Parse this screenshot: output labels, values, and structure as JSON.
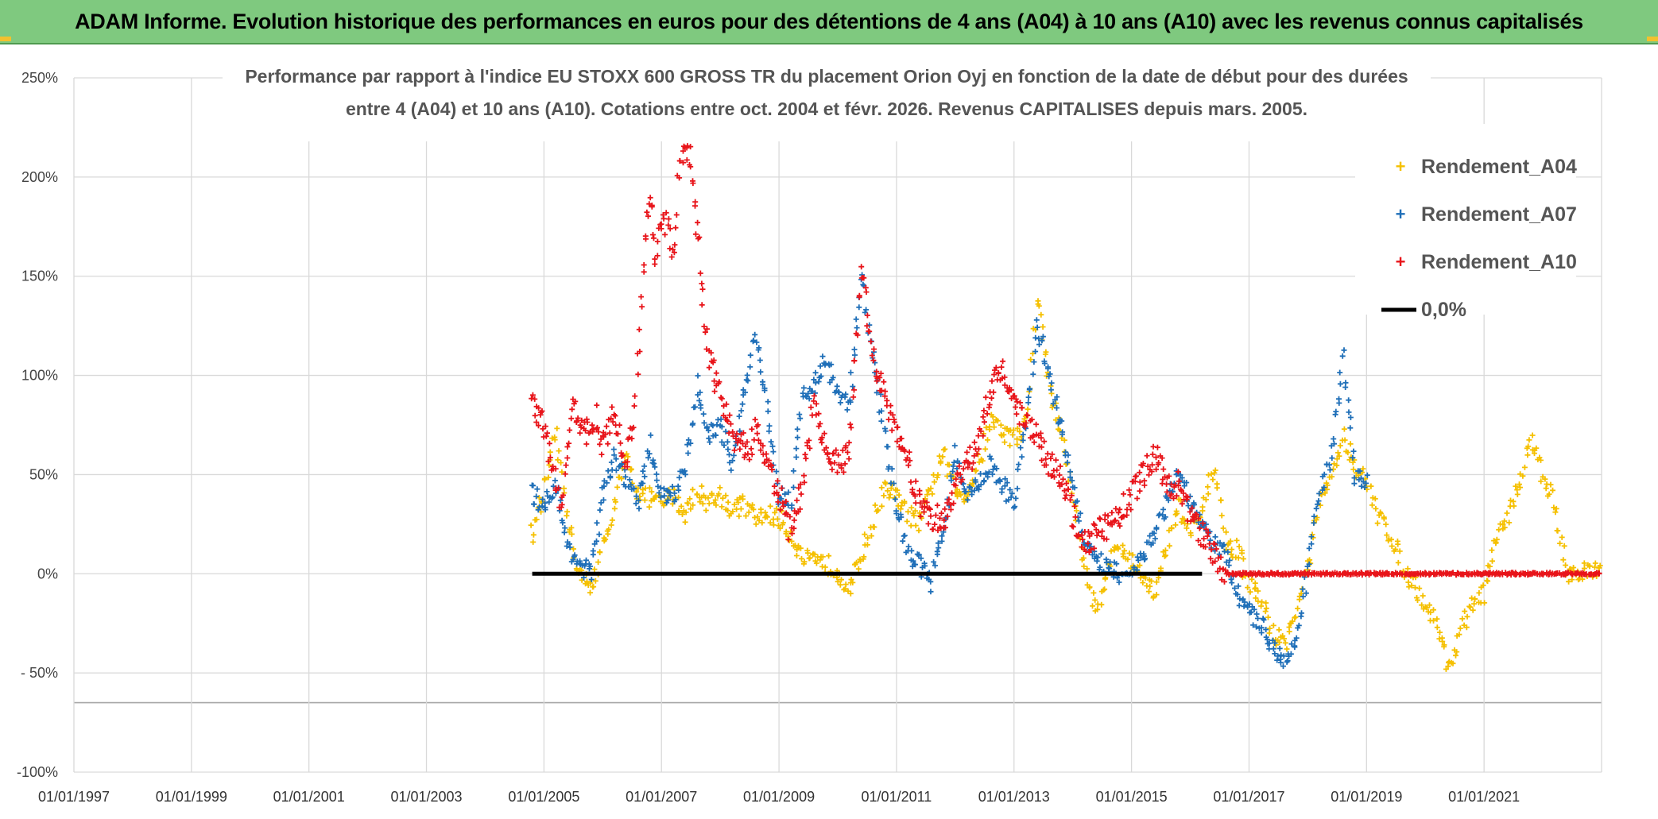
{
  "banner": {
    "title": "ADAM Informe. Evolution historique des performances en euros pour des détentions de 4 ans (A04) à 10 ans (A10) avec les revenus connus capitalisés"
  },
  "colors": {
    "banner_bg": "#7fc97f",
    "A04": "#f5c000",
    "A07": "#1f6fb8",
    "A10": "#e8141a",
    "zero": "#000000",
    "grid": "#d9d9d9"
  },
  "chart_data": {
    "type": "scatter",
    "title_lines": [
      "Performance par rapport à l'indice EU STOXX 600 GROSS TR  du placement Orion Oyj en fonction de la date de début pour des durées",
      "entre 4 (A04) et 10 ans (A10). Cotations entre oct. 2004 et févr. 2026. Revenus CAPITALISES depuis mars. 2005."
    ],
    "xlabel": "",
    "ylabel": "",
    "x_range": [
      1997.0,
      2023.0
    ],
    "ylim": [
      -100,
      250
    ],
    "x_ticks": [
      {
        "label": "01/01/1997",
        "value": 1997
      },
      {
        "label": "01/01/1999",
        "value": 1999
      },
      {
        "label": "01/01/2001",
        "value": 2001
      },
      {
        "label": "01/01/2003",
        "value": 2003
      },
      {
        "label": "01/01/2005",
        "value": 2005
      },
      {
        "label": "01/01/2007",
        "value": 2007
      },
      {
        "label": "01/01/2009",
        "value": 2009
      },
      {
        "label": "01/01/2011",
        "value": 2011
      },
      {
        "label": "01/01/2013",
        "value": 2013
      },
      {
        "label": "01/01/2015",
        "value": 2015
      },
      {
        "label": "01/01/2017",
        "value": 2017
      },
      {
        "label": "01/01/2019",
        "value": 2019
      },
      {
        "label": "01/01/2021",
        "value": 2021
      }
    ],
    "y_ticks": [
      {
        "label": "250%",
        "value": 250
      },
      {
        "label": "200%",
        "value": 200
      },
      {
        "label": "150%",
        "value": 150
      },
      {
        "label": "100%",
        "value": 100
      },
      {
        "label": "50%",
        "value": 50
      },
      {
        "label": "0%",
        "value": 0
      },
      {
        "label": "- 50%",
        "value": -50
      },
      {
        "label": "-100%",
        "value": -100
      }
    ],
    "extra_hline": -65,
    "legend": {
      "position": "top-right",
      "entries": [
        "Rendement_A04",
        "Rendement_A07",
        "Rendement_A10",
        "0,0%"
      ]
    },
    "series": [
      {
        "name": "Rendement_A04",
        "color": "#f5c000",
        "x": [
          2004.8,
          2005.0,
          2005.2,
          2005.4,
          2005.6,
          2005.8,
          2006.0,
          2006.2,
          2006.4,
          2006.6,
          2006.8,
          2007.0,
          2007.2,
          2007.4,
          2007.6,
          2007.8,
          2008.0,
          2008.2,
          2008.4,
          2008.6,
          2008.8,
          2009.0,
          2009.2,
          2009.4,
          2009.6,
          2009.8,
          2010.0,
          2010.2,
          2010.4,
          2010.6,
          2010.8,
          2011.0,
          2011.2,
          2011.4,
          2011.6,
          2011.8,
          2012.0,
          2012.2,
          2012.4,
          2012.6,
          2012.8,
          2013.0,
          2013.2,
          2013.4,
          2013.6,
          2013.8,
          2014.0,
          2014.2,
          2014.4,
          2014.6,
          2014.8,
          2015.0,
          2015.2,
          2015.4,
          2015.6,
          2015.8,
          2016.0,
          2016.2,
          2016.4,
          2016.6,
          2016.8,
          2017.0,
          2017.2,
          2017.4,
          2017.6,
          2017.8,
          2018.0,
          2018.2,
          2018.4,
          2018.6,
          2018.8,
          2019.0,
          2019.2,
          2019.4,
          2019.6,
          2019.8,
          2020.0,
          2020.2,
          2020.4,
          2020.6,
          2020.8,
          2021.0,
          2021.2,
          2021.4,
          2021.6,
          2021.8,
          2022.0,
          2022.2,
          2022.4,
          2022.6,
          2022.8,
          2023.0
        ],
        "values": [
          20,
          40,
          70,
          30,
          0,
          -8,
          12,
          35,
          58,
          42,
          38,
          35,
          40,
          30,
          42,
          36,
          40,
          32,
          35,
          28,
          30,
          28,
          20,
          8,
          5,
          5,
          2,
          -8,
          10,
          25,
          45,
          38,
          30,
          25,
          45,
          60,
          42,
          40,
          55,
          78,
          72,
          68,
          75,
          140,
          95,
          70,
          40,
          5,
          -20,
          5,
          15,
          5,
          0,
          -10,
          12,
          35,
          20,
          30,
          55,
          15,
          12,
          -5,
          -12,
          -30,
          -35,
          -20,
          5,
          35,
          48,
          70,
          55,
          45,
          30,
          20,
          5,
          -5,
          -15,
          -25,
          -48,
          -30,
          -15,
          -10,
          15,
          30,
          45,
          68,
          50,
          35,
          1,
          1,
          1,
          1
        ]
      },
      {
        "name": "Rendement_A07",
        "color": "#1f6fb8",
        "x": [
          2004.8,
          2005.0,
          2005.2,
          2005.4,
          2005.6,
          2005.8,
          2006.0,
          2006.2,
          2006.4,
          2006.6,
          2006.8,
          2007.0,
          2007.2,
          2007.4,
          2007.6,
          2007.8,
          2008.0,
          2008.2,
          2008.4,
          2008.6,
          2008.8,
          2009.0,
          2009.2,
          2009.4,
          2009.6,
          2009.8,
          2010.0,
          2010.2,
          2010.4,
          2010.6,
          2010.8,
          2011.0,
          2011.2,
          2011.4,
          2011.6,
          2011.8,
          2012.0,
          2012.2,
          2012.4,
          2012.6,
          2012.8,
          2013.0,
          2013.2,
          2013.4,
          2013.6,
          2013.8,
          2014.0,
          2014.2,
          2014.4,
          2014.6,
          2014.8,
          2015.0,
          2015.2,
          2015.4,
          2015.6,
          2015.8,
          2016.0,
          2016.2,
          2016.4,
          2016.6,
          2016.8,
          2017.0,
          2017.2,
          2017.4,
          2017.6,
          2017.8,
          2018.0,
          2018.2,
          2018.4,
          2018.6,
          2018.8,
          2019.0
        ],
        "values": [
          40,
          35,
          45,
          15,
          5,
          0,
          40,
          58,
          48,
          35,
          65,
          40,
          40,
          52,
          95,
          70,
          75,
          55,
          90,
          120,
          85,
          40,
          38,
          90,
          95,
          108,
          90,
          85,
          150,
          110,
          70,
          35,
          10,
          5,
          -5,
          25,
          60,
          40,
          45,
          55,
          45,
          35,
          75,
          125,
          100,
          75,
          45,
          15,
          5,
          5,
          0,
          0,
          10,
          20,
          35,
          50,
          35,
          25,
          15,
          10,
          -10,
          -20,
          -25,
          -35,
          -45,
          -30,
          0,
          40,
          60,
          110,
          50,
          45
        ]
      },
      {
        "name": "Rendement_A10",
        "color": "#e8141a",
        "x": [
          2004.8,
          2004.9,
          2005.0,
          2005.1,
          2005.2,
          2005.3,
          2005.5,
          2005.7,
          2005.9,
          2006.0,
          2006.2,
          2006.4,
          2006.5,
          2006.6,
          2006.7,
          2006.8,
          2006.9,
          2007.0,
          2007.1,
          2007.2,
          2007.3,
          2007.4,
          2007.5,
          2007.6,
          2007.7,
          2007.8,
          2008.0,
          2008.2,
          2008.4,
          2008.5,
          2008.6,
          2008.8,
          2009.0,
          2009.2,
          2009.4,
          2009.6,
          2009.8,
          2010.0,
          2010.2,
          2010.4,
          2010.5,
          2010.6,
          2010.8,
          2011.0,
          2011.2,
          2011.4,
          2011.6,
          2011.8,
          2012.0,
          2012.2,
          2012.4,
          2012.6,
          2012.8,
          2013.0,
          2013.2,
          2013.4,
          2013.6,
          2013.8,
          2014.0,
          2014.2,
          2014.4,
          2014.6,
          2014.8,
          2015.0,
          2015.2,
          2015.4,
          2015.6,
          2015.8,
          2016.0,
          2016.2,
          2016.4,
          2016.6,
          2016.8,
          2017.0,
          2017.5,
          2018.0,
          2018.5,
          2019.0,
          2019.5,
          2020.0,
          2020.5,
          2021.0,
          2021.5,
          2022.0,
          2022.5,
          2023.0
        ],
        "values": [
          90,
          80,
          75,
          55,
          45,
          35,
          85,
          70,
          80,
          65,
          80,
          55,
          70,
          110,
          155,
          195,
          160,
          180,
          175,
          160,
          200,
          215,
          210,
          175,
          140,
          110,
          90,
          70,
          65,
          60,
          75,
          55,
          40,
          20,
          45,
          85,
          60,
          55,
          60,
          155,
          130,
          110,
          90,
          70,
          55,
          35,
          30,
          25,
          45,
          55,
          65,
          95,
          105,
          85,
          75,
          70,
          55,
          50,
          30,
          15,
          20,
          25,
          30,
          40,
          50,
          60,
          45,
          45,
          30,
          20,
          10,
          0,
          0,
          0,
          0,
          0,
          0,
          0,
          0,
          0,
          0,
          0,
          0,
          0,
          0,
          0
        ]
      },
      {
        "name": "0,0%",
        "color": "#000000",
        "x": [
          2004.8,
          2016.2
        ],
        "values": [
          0,
          0
        ]
      }
    ]
  }
}
